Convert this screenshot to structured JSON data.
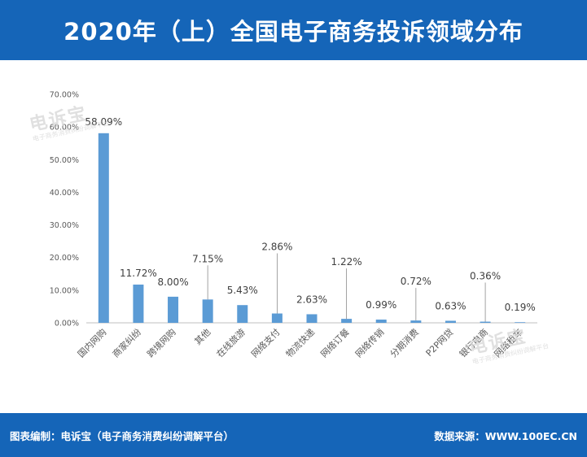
{
  "header": {
    "title": "2020年（上）全国电子商务投诉领域分布"
  },
  "watermark": {
    "name": "电诉宝",
    "tagline": "电子商务消费纠纷调解平台"
  },
  "footer": {
    "left": "图表编制：电诉宝（电子商务消费纠纷调解平台）",
    "right": "数据来源：WWW.100EC.CN"
  },
  "colors": {
    "brand": "#1565b8",
    "bar": "#5b9bd5"
  },
  "chart_data": {
    "type": "bar",
    "categories": [
      "国内网购",
      "商家纠纷",
      "跨境网购",
      "其他",
      "在线旅游",
      "网络支付",
      "物流快递",
      "网络订餐",
      "网络传销",
      "分期消费",
      "P2P网贷",
      "银行电商",
      "网络租车"
    ],
    "values": [
      58.09,
      11.72,
      8.0,
      7.15,
      5.43,
      2.86,
      2.63,
      1.22,
      0.99,
      0.72,
      0.63,
      0.36,
      0.19
    ],
    "data_labels": [
      "58.09%",
      "11.72%",
      "8.00%",
      "7.15%",
      "5.43%",
      "2.86%",
      "2.63%",
      "1.22%",
      "0.99%",
      "0.72%",
      "0.63%",
      "0.36%",
      "0.19%"
    ],
    "y_ticks": [
      0,
      10,
      20,
      30,
      40,
      50,
      60,
      70
    ],
    "y_tick_labels": [
      "0.00%",
      "10.00%",
      "20.00%",
      "30.00%",
      "40.00%",
      "50.00%",
      "60.00%",
      "70.00%"
    ],
    "ylim": [
      0,
      70
    ],
    "grid": false,
    "legend": "none",
    "title": "",
    "xlabel": "",
    "ylabel": ""
  }
}
